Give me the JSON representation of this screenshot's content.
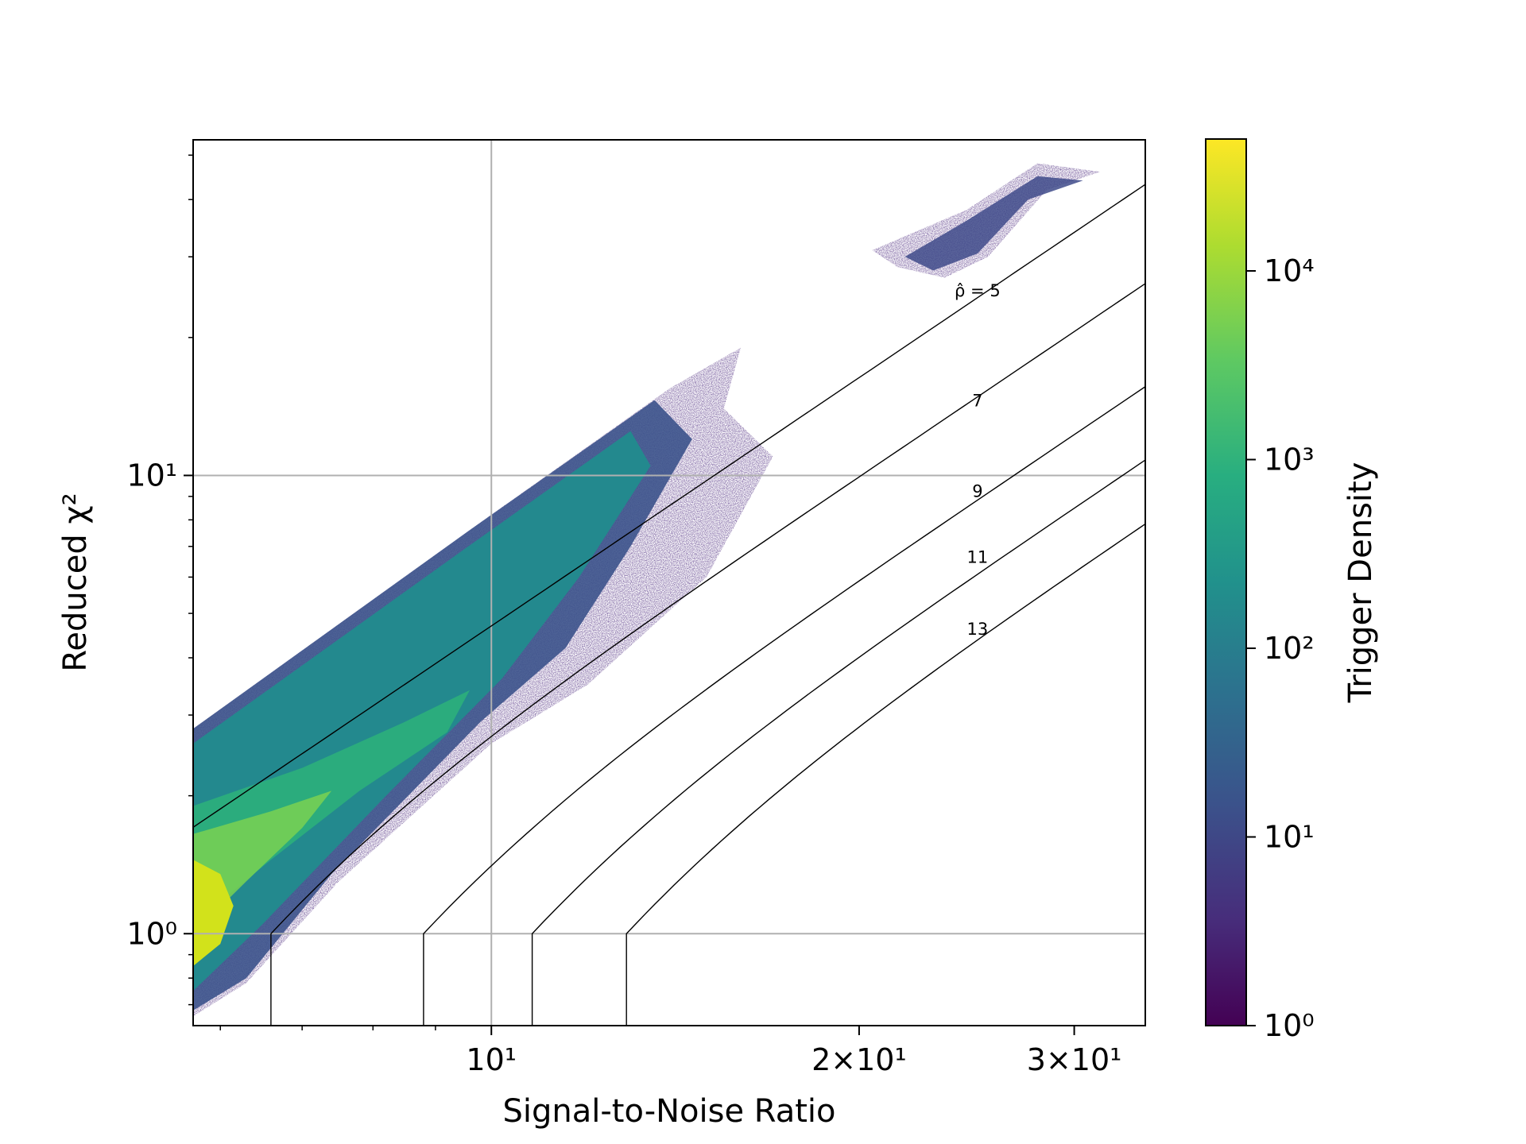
{
  "chart_data": {
    "type": "hexbin",
    "xlabel": "Signal-to-Noise Ratio",
    "ylabel": "Reduced χ²",
    "xscale": "log",
    "yscale": "log",
    "xlim": [
      5.7,
      34.3
    ],
    "ylim": [
      0.63,
      54
    ],
    "xticks": [
      {
        "value": 10,
        "label": "10¹"
      },
      {
        "value": 20,
        "label": "2×10¹"
      },
      {
        "value": 30,
        "label": "3×10¹"
      }
    ],
    "yticks": [
      {
        "value": 1,
        "label": "10⁰"
      },
      {
        "value": 10,
        "label": "10¹"
      }
    ],
    "grid": true,
    "colormap": "viridis",
    "colorbar": {
      "label": "Trigger Density",
      "scale": "log",
      "range": [
        1,
        50000
      ],
      "ticks": [
        {
          "value": 1,
          "label": "10⁰"
        },
        {
          "value": 10,
          "label": "10¹"
        },
        {
          "value": 100,
          "label": "10²"
        },
        {
          "value": 1000,
          "label": "10³"
        },
        {
          "value": 10000,
          "label": "10⁴"
        }
      ]
    },
    "contours": [
      {
        "label": "ρ̂ = 5",
        "level": 5,
        "vertical_snr": null,
        "label_x": 25.0,
        "label_y": 25.2
      },
      {
        "label": "7",
        "level": 7,
        "vertical_snr": 6.6,
        "label_x": 25.0,
        "label_y": 14.5
      },
      {
        "label": "9",
        "level": 9,
        "vertical_snr": 8.8,
        "label_x": 25.0,
        "label_y": 9.2
      },
      {
        "label": "11",
        "level": 11,
        "vertical_snr": 10.8,
        "label_x": 25.0,
        "label_y": 6.6
      },
      {
        "label": "13",
        "level": 13,
        "vertical_snr": 12.9,
        "label_x": 25.0,
        "label_y": 4.6
      }
    ],
    "density_regions": [
      {
        "name": "main-band",
        "points": [
          [
            5.7,
            2.8
          ],
          [
            9.6,
            7.6
          ],
          [
            14.0,
            15.5
          ],
          [
            16.0,
            19.0
          ],
          [
            15.5,
            14.0
          ],
          [
            17.0,
            11.0
          ],
          [
            15.0,
            6.0
          ],
          [
            12.0,
            3.5
          ],
          [
            10.0,
            2.6
          ],
          [
            7.5,
            1.3
          ],
          [
            6.3,
            0.78
          ],
          [
            5.7,
            0.66
          ]
        ]
      },
      {
        "name": "high-cluster",
        "points": [
          [
            20.5,
            31.0
          ],
          [
            24.5,
            38.0
          ],
          [
            28.0,
            48.0
          ],
          [
            31.5,
            46.0
          ],
          [
            28.5,
            42.0
          ],
          [
            25.5,
            30.0
          ],
          [
            23.5,
            27.0
          ],
          [
            21.5,
            28.5
          ]
        ]
      }
    ]
  }
}
